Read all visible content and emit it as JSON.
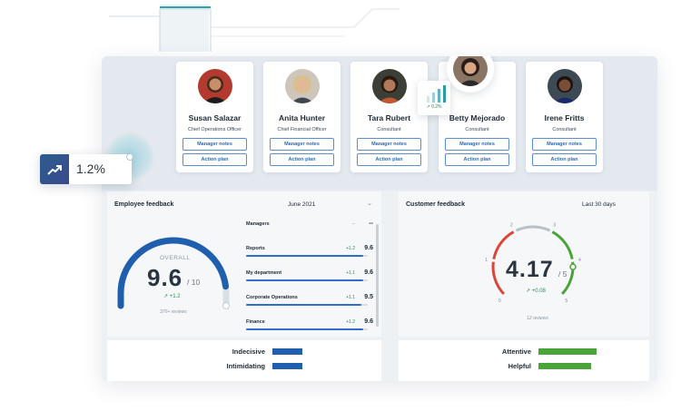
{
  "floating_trend": {
    "value": "1.2%",
    "icon": "trend-up-icon"
  },
  "people": [
    {
      "name": "Susan Salazar",
      "role": "Chief Operations Officer",
      "btn1": "Manager notes",
      "btn2": "Action plan",
      "skin": "#c98f6b",
      "hair": "#4a2a1a",
      "bg": "#b33a2e"
    },
    {
      "name": "Anita Hunter",
      "role": "Chief Financial Officer",
      "btn1": "Manager notes",
      "btn2": "Action plan",
      "skin": "#e3b899",
      "hair": "#d9bf8c",
      "bg": "#cfc6bb"
    },
    {
      "name": "Tara Rubert",
      "role": "Consultant",
      "btn1": "Manager notes",
      "btn2": "Action plan",
      "skin": "#b07a5a",
      "hair": "#2b1a14",
      "bg": "#3c3f36"
    },
    {
      "name": "Betty Mejorado",
      "role": "Consultant",
      "btn1": "Manager notes",
      "btn2": "Action plan",
      "skin": "#d7a684",
      "hair": "#2a1c18",
      "bg": "#8a7565"
    },
    {
      "name": "Irene Fritts",
      "role": "Consultant",
      "btn1": "Manager notes",
      "btn2": "Action plan",
      "skin": "#7a4e36",
      "hair": "#1a1210",
      "bg": "#3d4a54"
    }
  ],
  "mini_widget": {
    "delta": "0.2%"
  },
  "employee_feedback": {
    "title": "Employee feedback",
    "period": "June 2021",
    "overall_label": "OVERALL",
    "score": "9.6",
    "score_den": "/ 10",
    "delta": "+1.2",
    "reviews": "370+ reviews",
    "gauge_fraction": 0.96,
    "departments": [
      {
        "name": "Managers",
        "delta": "--",
        "score": "--",
        "fill": 0.0
      },
      {
        "name": "Reports",
        "delta": "+1.2",
        "score": "9.6",
        "fill": 0.96
      },
      {
        "name": "My department",
        "delta": "+1.1",
        "score": "9.6",
        "fill": 0.96
      },
      {
        "name": "Corporate Operations",
        "delta": "+1.1",
        "score": "9.5",
        "fill": 0.95
      },
      {
        "name": "Finance",
        "delta": "+1.2",
        "score": "9.6",
        "fill": 0.96
      }
    ],
    "words": [
      {
        "label": "Indecisive",
        "level": 0.55
      },
      {
        "label": "Intimidating",
        "level": 0.55
      }
    ],
    "accent": "#1f5fae"
  },
  "customer_feedback": {
    "title": "Customer feedback",
    "period": "Last 30 days",
    "score": "4.17",
    "score_den": "/ 5",
    "delta": "+0.08",
    "reviews": "12 reviews",
    "gauge_ticks": [
      "0",
      "1",
      "2",
      "3",
      "4",
      "5"
    ],
    "words": [
      {
        "label": "Attentive",
        "level": 1.0
      },
      {
        "label": "Helpful",
        "level": 0.9
      }
    ],
    "colors": {
      "low": "#d9463b",
      "mid": "#b9c0c7",
      "high": "#4aa43a"
    }
  }
}
